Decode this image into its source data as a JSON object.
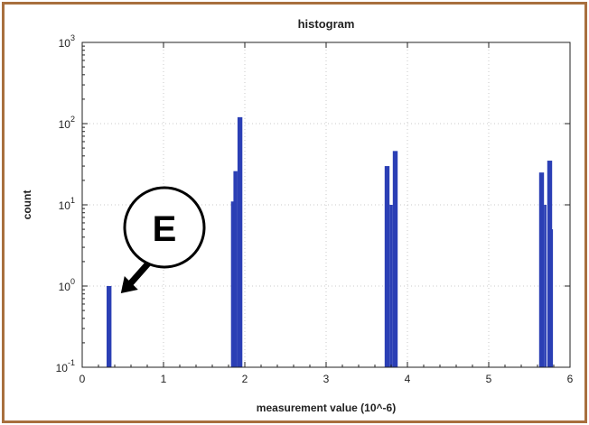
{
  "chart_data": {
    "type": "bar",
    "title": "histogram",
    "xlabel": "measurement value (10^-6)",
    "ylabel": "count",
    "xlim": [
      0,
      6
    ],
    "ylim_log10": [
      -1,
      3
    ],
    "y_scale": "log",
    "grid": true,
    "x_ticks": [
      "0",
      "1",
      "2",
      "3",
      "4",
      "5",
      "6"
    ],
    "bar_color": "#2b3fb5",
    "bars": [
      {
        "x": 0.3,
        "width": 0.06,
        "value": 1
      },
      {
        "x": 1.83,
        "width": 0.04,
        "value": 11
      },
      {
        "x": 1.86,
        "width": 0.05,
        "value": 26
      },
      {
        "x": 1.91,
        "width": 0.06,
        "value": 120
      },
      {
        "x": 3.72,
        "width": 0.06,
        "value": 30
      },
      {
        "x": 3.78,
        "width": 0.04,
        "value": 10
      },
      {
        "x": 3.82,
        "width": 0.06,
        "value": 46
      },
      {
        "x": 5.62,
        "width": 0.06,
        "value": 25
      },
      {
        "x": 5.68,
        "width": 0.03,
        "value": 10
      },
      {
        "x": 5.72,
        "width": 0.06,
        "value": 35
      },
      {
        "x": 5.77,
        "width": 0.02,
        "value": 5
      }
    ],
    "annotations": [
      {
        "text": "E",
        "target_x": 0.52,
        "target_y": 1.0
      }
    ]
  },
  "colors": {
    "frame": "#a86f3e",
    "grid": "#bbbbbb",
    "axis": "#222222"
  }
}
